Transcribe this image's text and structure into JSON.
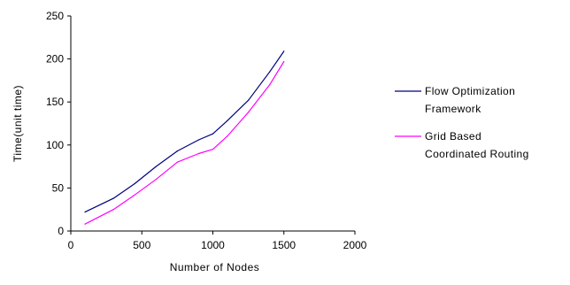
{
  "chart_data": {
    "type": "line",
    "title": "",
    "xlabel": "Number of Nodes",
    "ylabel": "Time(unit time)",
    "xlim": [
      0,
      2000
    ],
    "ylim": [
      0,
      250
    ],
    "x_ticks": [
      0,
      500,
      1000,
      1500,
      2000
    ],
    "y_ticks": [
      0,
      50,
      100,
      150,
      200,
      250
    ],
    "grid": false,
    "legend_position": "right",
    "series": [
      {
        "name_lines": [
          "Flow Optimization",
          "Framework"
        ],
        "color": "#000080",
        "x": [
          100,
          300,
          450,
          600,
          750,
          900,
          1000,
          1100,
          1250,
          1400,
          1500
        ],
        "y": [
          22,
          38,
          55,
          75,
          93,
          106,
          113,
          128,
          152,
          185,
          209
        ]
      },
      {
        "name_lines": [
          "Grid Based",
          "Coordinated Routing"
        ],
        "color": "#ff00ff",
        "x": [
          100,
          300,
          450,
          600,
          750,
          900,
          1000,
          1100,
          1250,
          1400,
          1500
        ],
        "y": [
          8,
          25,
          42,
          60,
          80,
          90,
          95,
          110,
          138,
          170,
          197
        ]
      }
    ]
  }
}
